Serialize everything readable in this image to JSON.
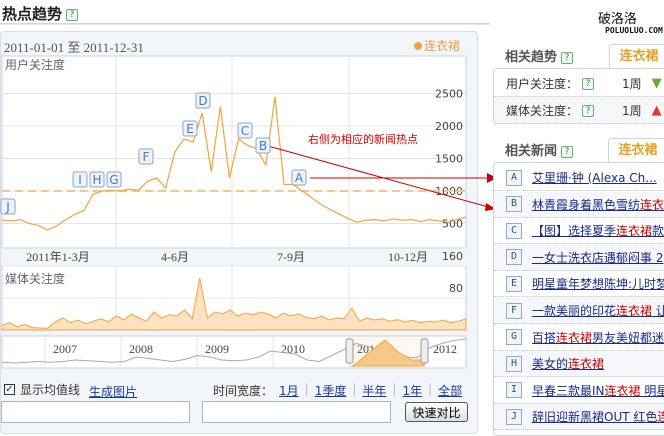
{
  "header": {
    "title": "热点趋势",
    "watermark_cn": "破洛洛",
    "watermark_en": "POLUOLUO.COM"
  },
  "chart_data": [
    {
      "type": "line",
      "title": "用户关注度",
      "range_label": "2011-01-01 至 2011-12-31",
      "legend": "连衣裙",
      "color": "#f3a33a",
      "x_ticks": [
        "2011年1-3月",
        "4-6月",
        "7-9月",
        "10-12月"
      ],
      "y_ticks": [
        500,
        1000,
        1500,
        2000,
        2500
      ],
      "ylim": [
        0,
        2900
      ],
      "average": 1000,
      "x_unit": "week of 2011",
      "values": [
        550,
        540,
        560,
        500,
        470,
        400,
        460,
        560,
        640,
        700,
        950,
        1000,
        1010,
        1000,
        1030,
        1010,
        1150,
        1200,
        1050,
        1600,
        1800,
        1750,
        2200,
        1300,
        2300,
        1200,
        1800,
        1700,
        1650,
        1400,
        2450,
        1100,
        1100,
        1000,
        900,
        800,
        720,
        650,
        580,
        520,
        550,
        560,
        540,
        570,
        550,
        560,
        530,
        560,
        540,
        520,
        560,
        600
      ],
      "markers": [
        {
          "label": "J",
          "week": 0
        },
        {
          "label": "I",
          "week": 10
        },
        {
          "label": "H",
          "week": 11
        },
        {
          "label": "G",
          "week": 12
        },
        {
          "label": "F",
          "week": 16
        },
        {
          "label": "E",
          "week": 21
        },
        {
          "label": "D",
          "week": 22
        },
        {
          "label": "C",
          "week": 27
        },
        {
          "label": "B",
          "week": 29
        },
        {
          "label": "A",
          "week": 33
        }
      ],
      "annotation": "右侧为相应的新闻热点"
    },
    {
      "type": "area",
      "title": "媒体关注度",
      "y_ticks": [
        80,
        160
      ],
      "ylim": [
        0,
        180
      ],
      "color": "#f3a33a",
      "values": [
        12,
        18,
        8,
        14,
        6,
        5,
        4,
        20,
        30,
        18,
        25,
        15,
        22,
        28,
        20,
        35,
        25,
        40,
        30,
        22,
        45,
        30,
        38,
        35,
        50,
        28,
        130,
        30,
        45,
        40,
        50,
        35,
        42,
        38,
        45,
        40,
        30,
        42,
        35,
        40,
        32,
        28,
        35,
        25,
        30,
        28,
        55,
        22,
        30,
        25,
        28,
        22,
        26,
        20,
        24,
        18,
        22,
        20,
        25,
        18,
        22,
        28
      ]
    },
    {
      "type": "area",
      "title": "",
      "x_ticks": [
        "2007",
        "2008",
        "2009",
        "2010",
        "2011",
        "2012"
      ],
      "values": [
        5,
        4,
        5,
        6,
        5,
        6,
        8,
        7,
        6,
        5,
        6,
        12,
        10,
        8,
        6,
        9,
        14,
        12,
        8,
        7,
        8,
        12,
        20,
        18,
        16,
        8,
        6,
        14,
        22,
        30,
        26,
        20,
        14,
        12,
        11,
        24,
        30,
        34,
        36
      ]
    }
  ],
  "controls": {
    "show_avg_label": "显示均值线",
    "show_avg_checked": true,
    "gen_image": "生成图片",
    "time_width_label": "时间宽度：",
    "time_options": [
      "1月",
      "1季度",
      "半年",
      "1年",
      "全部"
    ],
    "compare_button": "快速对比",
    "input1": "",
    "input2": ""
  },
  "related_trend": {
    "title": "相关趋势",
    "tab": "连衣裙",
    "rows": [
      {
        "label": "用户关注度：",
        "period": "1周",
        "direction": "down",
        "color": "#6a3"
      },
      {
        "label": "媒体关注度：",
        "period": "1周",
        "direction": "up",
        "color": "#e33"
      }
    ]
  },
  "related_news": {
    "title": "相关新闻",
    "tab": "连衣裙",
    "items": [
      {
        "id": "A",
        "pre": "艾里珊·钟 (Alexa Ch...",
        "kw": "",
        "post": ""
      },
      {
        "id": "B",
        "pre": "林青霞身着黑色雪纺",
        "kw": "连衣",
        "post": ""
      },
      {
        "id": "C",
        "pre": "【图】选择夏季",
        "kw": "连衣裙",
        "post": "款"
      },
      {
        "id": "D",
        "pre": "一女士洗衣店遇郁闷事 2",
        "kw": "",
        "post": ""
      },
      {
        "id": "E",
        "pre": "明星童年梦想陈坤:儿时梦",
        "kw": "",
        "post": ""
      },
      {
        "id": "F",
        "pre": "一款美丽的印花",
        "kw": "连衣裙",
        "post": " 让"
      },
      {
        "id": "G",
        "pre": "百搭",
        "kw": "连衣裙",
        "post": "男友美妞都迷"
      },
      {
        "id": "H",
        "pre": "美女的",
        "kw": "连衣裙",
        "post": ""
      },
      {
        "id": "I",
        "pre": "早春三款最IN",
        "kw": "连衣裙",
        "post": " 明星"
      },
      {
        "id": "J",
        "pre": "辞旧迎新黑裙OUT 红色",
        "kw": "连",
        "post": ""
      }
    ]
  }
}
